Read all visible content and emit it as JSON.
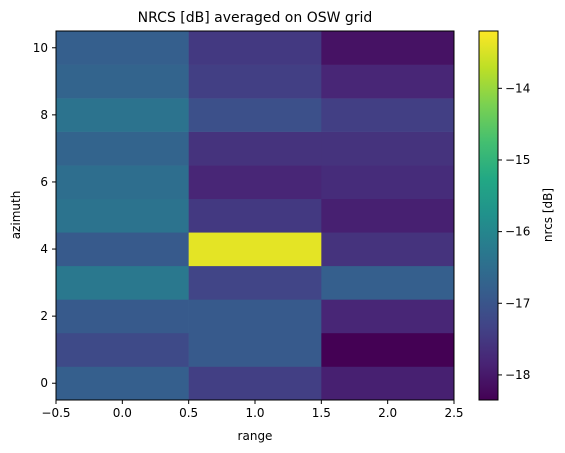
{
  "chart_data": {
    "type": "heatmap",
    "title": "NRCS [dB] averaged on OSW grid",
    "xlabel": "range",
    "ylabel": "azimuth",
    "xlim": [
      -0.5,
      2.5
    ],
    "ylim": [
      -0.5,
      10.5
    ],
    "x_ticks": [
      -0.5,
      0.0,
      0.5,
      1.0,
      1.5,
      2.0,
      2.5
    ],
    "x_tick_labels": [
      "−0.5",
      "0.0",
      "0.5",
      "1.0",
      "1.5",
      "2.0",
      "2.5"
    ],
    "y_ticks": [
      0,
      2,
      4,
      6,
      8,
      10
    ],
    "y_tick_labels": [
      "0",
      "2",
      "4",
      "6",
      "8",
      "10"
    ],
    "x": [
      0,
      1,
      2
    ],
    "y": [
      0,
      1,
      2,
      3,
      4,
      5,
      6,
      7,
      8,
      9,
      10
    ],
    "z": [
      [
        -16.8,
        -17.4,
        -17.9
      ],
      [
        -17.2,
        -16.9,
        -18.4
      ],
      [
        -16.9,
        -16.9,
        -17.8
      ],
      [
        -16.3,
        -17.3,
        -16.8
      ],
      [
        -16.9,
        -13.4,
        -17.6
      ],
      [
        -16.4,
        -17.5,
        -17.9
      ],
      [
        -16.5,
        -17.8,
        -17.7
      ],
      [
        -16.7,
        -17.6,
        -17.6
      ],
      [
        -16.4,
        -17.1,
        -17.4
      ],
      [
        -16.7,
        -17.4,
        -17.8
      ],
      [
        -16.8,
        -17.5,
        -18.1
      ]
    ],
    "colorbar": {
      "label": "nrcs [dB]",
      "colormap": "viridis",
      "range": [
        -18.35,
        -13.2
      ],
      "ticks": [
        -18,
        -17,
        -16,
        -15,
        -14
      ],
      "tick_labels": [
        "−18",
        "−17",
        "−16",
        "−15",
        "−14"
      ]
    },
    "grid": false
  }
}
